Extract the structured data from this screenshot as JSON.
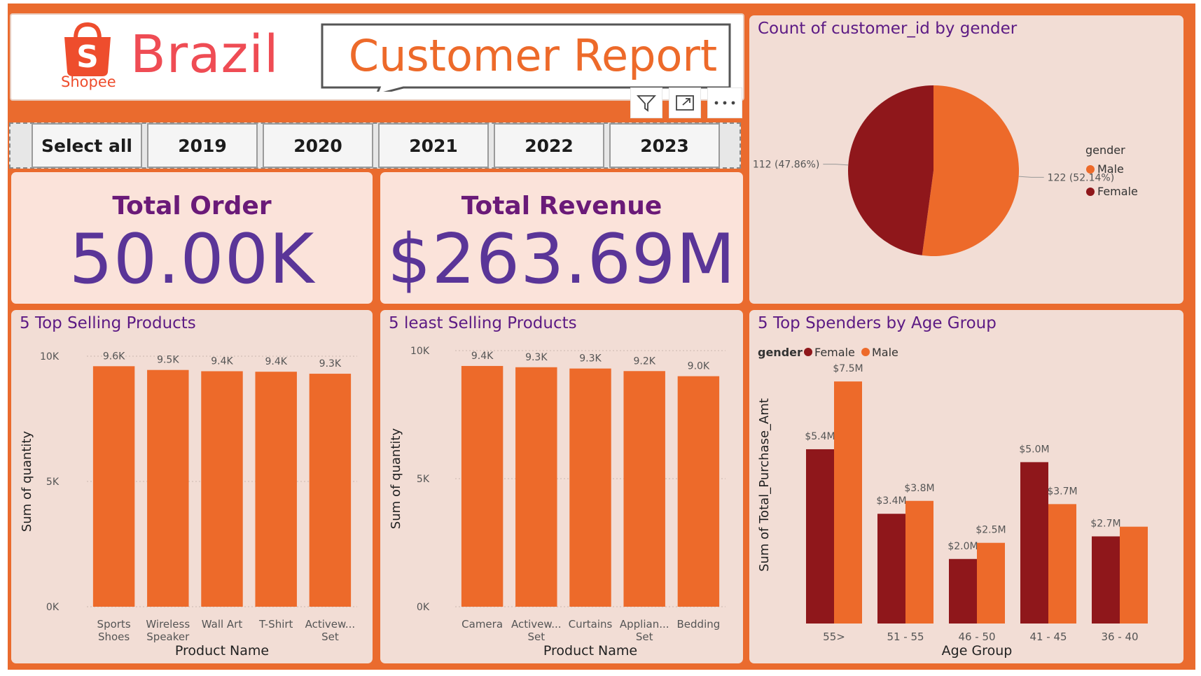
{
  "header": {
    "logo_text": "Shopee",
    "country": "Brazil",
    "title": "Customer Report"
  },
  "visual_icons": [
    "filter-icon",
    "focus-mode-icon",
    "more-options-icon"
  ],
  "year_slicer": {
    "options": [
      "Select all",
      "2019",
      "2020",
      "2021",
      "2022",
      "2023"
    ]
  },
  "cards": {
    "total_order": {
      "label": "Total Order",
      "value": "50.00K"
    },
    "total_revenue": {
      "label": "Total Revenue",
      "value": "$263.69M"
    }
  },
  "colors": {
    "background": "#ea6b2e",
    "panel": "#f2ddd5",
    "male": "#ed6a2a",
    "female": "#8f171b",
    "title_purple": "#5c1a84",
    "value_purple": "#5a3598"
  },
  "chart_data": [
    {
      "id": "gender_pie",
      "type": "pie",
      "title": "Count of customer_id by gender",
      "legend_title": "gender",
      "legend_position": "right",
      "slices": [
        {
          "name": "Male",
          "value": 122,
          "label": "122 (52.14%)",
          "color": "#ed6a2a"
        },
        {
          "name": "Female",
          "value": 112,
          "label": "112 (47.86%)",
          "color": "#8f171b"
        }
      ]
    },
    {
      "id": "top_selling",
      "type": "bar",
      "title": "5 Top Selling Products",
      "xlabel": "Product Name",
      "ylabel": "Sum of quantity",
      "ylim": [
        0,
        10000
      ],
      "yticks": [
        {
          "value": 0,
          "label": "0K"
        },
        {
          "value": 5000,
          "label": "5K"
        },
        {
          "value": 10000,
          "label": "10K"
        }
      ],
      "categories": [
        [
          "Sports",
          "Shoes"
        ],
        [
          "Wireless",
          "Speaker"
        ],
        [
          "Wall Art"
        ],
        [
          "T-Shirt"
        ],
        [
          "Activew...",
          "Set"
        ]
      ],
      "values": [
        9600,
        9450,
        9400,
        9380,
        9300
      ],
      "data_labels": [
        "9.6K",
        "9.5K",
        "9.4K",
        "9.4K",
        "9.3K"
      ]
    },
    {
      "id": "least_selling",
      "type": "bar",
      "title": "5 least Selling Products",
      "xlabel": "Product Name",
      "ylabel": "Sum of quantity",
      "ylim": [
        0,
        10000
      ],
      "yticks": [
        {
          "value": 0,
          "label": "0K"
        },
        {
          "value": 5000,
          "label": "5K"
        },
        {
          "value": 10000,
          "label": "10K"
        }
      ],
      "categories": [
        [
          "Camera"
        ],
        [
          "Activew...",
          "Set"
        ],
        [
          "Curtains"
        ],
        [
          "Applian...",
          "Set"
        ],
        [
          "Bedding"
        ]
      ],
      "values": [
        9400,
        9350,
        9300,
        9200,
        9000
      ],
      "data_labels": [
        "9.4K",
        "9.3K",
        "9.3K",
        "9.2K",
        "9.0K"
      ]
    },
    {
      "id": "spenders_age",
      "type": "bar",
      "title": "5 Top Spenders by Age Group",
      "xlabel": "Age Group",
      "ylabel": "Sum of Total_Purchase_Amt",
      "legend_title": "gender",
      "legend_position": "top-left",
      "ylim": [
        0,
        8500000
      ],
      "categories": [
        "55>",
        "51 - 55",
        "46 - 50",
        "41 - 45",
        "36 - 40"
      ],
      "series": [
        {
          "name": "Female",
          "color": "#8f171b",
          "values": [
            5400000,
            3400000,
            2000000,
            5000000,
            2700000
          ],
          "labels": [
            "$5.4M",
            "$3.4M",
            "$2.0M",
            "$5.0M",
            "$2.7M"
          ]
        },
        {
          "name": "Male",
          "color": "#ed6a2a",
          "values": [
            7500000,
            3800000,
            2500000,
            3700000,
            3000000
          ],
          "labels": [
            "$7.5M",
            "$3.8M",
            "$2.5M",
            "$3.7M",
            ""
          ]
        }
      ]
    }
  ]
}
